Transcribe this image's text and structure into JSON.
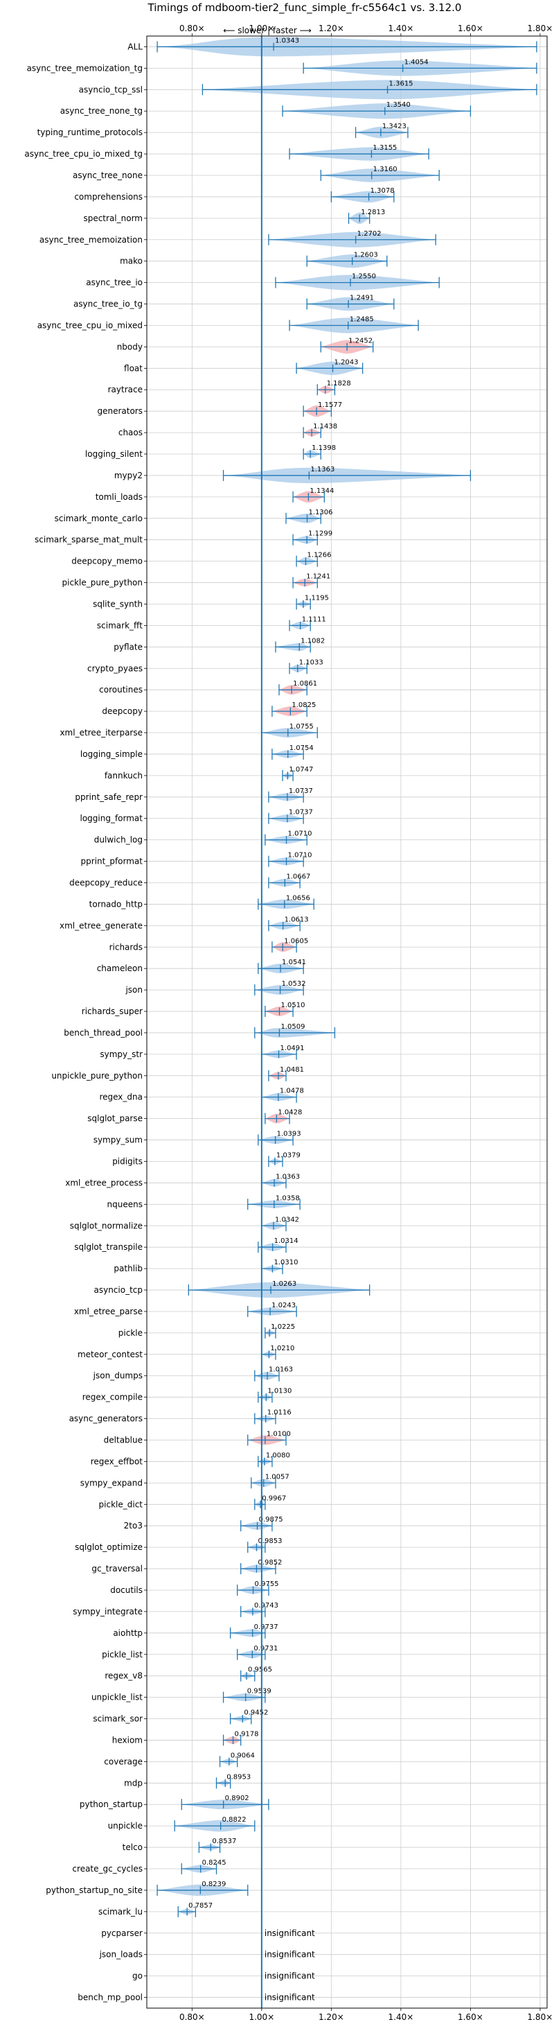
{
  "chart_data": {
    "type": "violin",
    "title": "Timings of mdboom-tier2_func_simple_fr-c5564c1 vs. 3.12.0",
    "annotation": "⟵ slower | faster ⟶",
    "xlim": [
      0.67,
      1.82
    ],
    "xticks": [
      0.8,
      1.0,
      1.2,
      1.4,
      1.6,
      1.8
    ],
    "xtick_labels": [
      "0.80×",
      "1.00×",
      "1.20×",
      "1.40×",
      "1.60×",
      "1.80×"
    ],
    "reference_line": 1.0,
    "grid": true,
    "insignificant_label": "insignificant",
    "colors": {
      "violin": "#a6c8e8",
      "highlight": "#f4a9ad",
      "line": "#1f77b4"
    },
    "benchmarks": [
      {
        "name": "ALL",
        "value": "1.0343",
        "mean": 1.0343,
        "min": 0.7,
        "max": 1.79,
        "width": 1.0,
        "hl": false
      },
      {
        "name": "async_tree_memoization_tg",
        "value": "1.4054",
        "mean": 1.4054,
        "min": 1.12,
        "max": 1.79,
        "width": 0.8,
        "hl": false
      },
      {
        "name": "asyncio_tcp_ssl",
        "value": "1.3615",
        "mean": 1.3615,
        "min": 0.83,
        "max": 1.79,
        "width": 1.0,
        "hl": false
      },
      {
        "name": "async_tree_none_tg",
        "value": "1.3540",
        "mean": 1.354,
        "min": 1.06,
        "max": 1.6,
        "width": 0.8,
        "hl": false
      },
      {
        "name": "typing_runtime_protocols",
        "value": "1.3423",
        "mean": 1.3423,
        "min": 1.27,
        "max": 1.42,
        "width": 0.6,
        "hl": false
      },
      {
        "name": "async_tree_cpu_io_mixed_tg",
        "value": "1.3155",
        "mean": 1.3155,
        "min": 1.08,
        "max": 1.48,
        "width": 0.7,
        "hl": false
      },
      {
        "name": "async_tree_none",
        "value": "1.3160",
        "mean": 1.316,
        "min": 1.17,
        "max": 1.51,
        "width": 0.7,
        "hl": false
      },
      {
        "name": "comprehensions",
        "value": "1.3078",
        "mean": 1.3078,
        "min": 1.2,
        "max": 1.38,
        "width": 0.6,
        "hl": false
      },
      {
        "name": "spectral_norm",
        "value": "1.2813",
        "mean": 1.2813,
        "min": 1.25,
        "max": 1.31,
        "width": 0.6,
        "hl": false
      },
      {
        "name": "async_tree_memoization",
        "value": "1.2702",
        "mean": 1.2702,
        "min": 1.02,
        "max": 1.5,
        "width": 0.8,
        "hl": false
      },
      {
        "name": "mako",
        "value": "1.2603",
        "mean": 1.2603,
        "min": 1.13,
        "max": 1.36,
        "width": 0.7,
        "hl": false
      },
      {
        "name": "async_tree_io",
        "value": "1.2550",
        "mean": 1.255,
        "min": 1.04,
        "max": 1.51,
        "width": 0.8,
        "hl": false
      },
      {
        "name": "async_tree_io_tg",
        "value": "1.2491",
        "mean": 1.2491,
        "min": 1.13,
        "max": 1.38,
        "width": 0.7,
        "hl": false
      },
      {
        "name": "async_tree_cpu_io_mixed",
        "value": "1.2485",
        "mean": 1.2485,
        "min": 1.08,
        "max": 1.45,
        "width": 0.8,
        "hl": false
      },
      {
        "name": "nbody",
        "value": "1.2452",
        "mean": 1.2452,
        "min": 1.17,
        "max": 1.32,
        "width": 0.7,
        "hl": true
      },
      {
        "name": "float",
        "value": "1.2043",
        "mean": 1.2043,
        "min": 1.1,
        "max": 1.29,
        "width": 0.7,
        "hl": false
      },
      {
        "name": "raytrace",
        "value": "1.1828",
        "mean": 1.1828,
        "min": 1.16,
        "max": 1.21,
        "width": 0.4,
        "hl": true
      },
      {
        "name": "generators",
        "value": "1.1577",
        "mean": 1.1577,
        "min": 1.12,
        "max": 1.2,
        "width": 0.6,
        "hl": true
      },
      {
        "name": "chaos",
        "value": "1.1438",
        "mean": 1.1438,
        "min": 1.12,
        "max": 1.17,
        "width": 0.4,
        "hl": true
      },
      {
        "name": "logging_silent",
        "value": "1.1398",
        "mean": 1.1398,
        "min": 1.12,
        "max": 1.17,
        "width": 0.4,
        "hl": false
      },
      {
        "name": "mypy2",
        "value": "1.1363",
        "mean": 1.1363,
        "min": 0.89,
        "max": 1.6,
        "width": 0.8,
        "hl": false
      },
      {
        "name": "tomli_loads",
        "value": "1.1344",
        "mean": 1.1344,
        "min": 1.09,
        "max": 1.18,
        "width": 0.6,
        "hl": true
      },
      {
        "name": "scimark_monte_carlo",
        "value": "1.1306",
        "mean": 1.1306,
        "min": 1.07,
        "max": 1.17,
        "width": 0.5,
        "hl": false
      },
      {
        "name": "scimark_sparse_mat_mult",
        "value": "1.1299",
        "mean": 1.1299,
        "min": 1.09,
        "max": 1.16,
        "width": 0.4,
        "hl": false
      },
      {
        "name": "deepcopy_memo",
        "value": "1.1266",
        "mean": 1.1266,
        "min": 1.1,
        "max": 1.16,
        "width": 0.4,
        "hl": false
      },
      {
        "name": "pickle_pure_python",
        "value": "1.1241",
        "mean": 1.1241,
        "min": 1.09,
        "max": 1.16,
        "width": 0.4,
        "hl": true
      },
      {
        "name": "sqlite_synth",
        "value": "1.1195",
        "mean": 1.1195,
        "min": 1.1,
        "max": 1.14,
        "width": 0.3,
        "hl": false
      },
      {
        "name": "scimark_fft",
        "value": "1.1111",
        "mean": 1.1111,
        "min": 1.08,
        "max": 1.14,
        "width": 0.4,
        "hl": false
      },
      {
        "name": "pyflate",
        "value": "1.1082",
        "mean": 1.1082,
        "min": 1.04,
        "max": 1.14,
        "width": 0.4,
        "hl": false
      },
      {
        "name": "crypto_pyaes",
        "value": "1.1033",
        "mean": 1.1033,
        "min": 1.08,
        "max": 1.13,
        "width": 0.4,
        "hl": false
      },
      {
        "name": "coroutines",
        "value": "1.0861",
        "mean": 1.0861,
        "min": 1.05,
        "max": 1.13,
        "width": 0.5,
        "hl": true
      },
      {
        "name": "deepcopy",
        "value": "1.0825",
        "mean": 1.0825,
        "min": 1.03,
        "max": 1.13,
        "width": 0.5,
        "hl": true
      },
      {
        "name": "xml_etree_iterparse",
        "value": "1.0755",
        "mean": 1.0755,
        "min": 1.0,
        "max": 1.16,
        "width": 0.5,
        "hl": false
      },
      {
        "name": "logging_simple",
        "value": "1.0754",
        "mean": 1.0754,
        "min": 1.03,
        "max": 1.12,
        "width": 0.4,
        "hl": false
      },
      {
        "name": "fannkuch",
        "value": "1.0747",
        "mean": 1.0747,
        "min": 1.06,
        "max": 1.09,
        "width": 0.3,
        "hl": false
      },
      {
        "name": "pprint_safe_repr",
        "value": "1.0737",
        "mean": 1.0737,
        "min": 1.02,
        "max": 1.12,
        "width": 0.4,
        "hl": false
      },
      {
        "name": "logging_format",
        "value": "1.0737",
        "mean": 1.0737,
        "min": 1.02,
        "max": 1.12,
        "width": 0.4,
        "hl": false
      },
      {
        "name": "dulwich_log",
        "value": "1.0710",
        "mean": 1.071,
        "min": 1.01,
        "max": 1.13,
        "width": 0.4,
        "hl": false
      },
      {
        "name": "pprint_pformat",
        "value": "1.0710",
        "mean": 1.071,
        "min": 1.02,
        "max": 1.12,
        "width": 0.4,
        "hl": false
      },
      {
        "name": "deepcopy_reduce",
        "value": "1.0667",
        "mean": 1.0667,
        "min": 1.02,
        "max": 1.11,
        "width": 0.4,
        "hl": false
      },
      {
        "name": "tornado_http",
        "value": "1.0656",
        "mean": 1.0656,
        "min": 0.99,
        "max": 1.15,
        "width": 0.5,
        "hl": false
      },
      {
        "name": "xml_etree_generate",
        "value": "1.0613",
        "mean": 1.0613,
        "min": 1.02,
        "max": 1.11,
        "width": 0.4,
        "hl": false
      },
      {
        "name": "richards",
        "value": "1.0605",
        "mean": 1.0605,
        "min": 1.03,
        "max": 1.1,
        "width": 0.5,
        "hl": true
      },
      {
        "name": "chameleon",
        "value": "1.0541",
        "mean": 1.0541,
        "min": 0.99,
        "max": 1.12,
        "width": 0.5,
        "hl": false
      },
      {
        "name": "json",
        "value": "1.0532",
        "mean": 1.0532,
        "min": 0.98,
        "max": 1.12,
        "width": 0.5,
        "hl": false
      },
      {
        "name": "richards_super",
        "value": "1.0510",
        "mean": 1.051,
        "min": 1.01,
        "max": 1.09,
        "width": 0.5,
        "hl": true
      },
      {
        "name": "bench_thread_pool",
        "value": "1.0509",
        "mean": 1.0509,
        "min": 0.98,
        "max": 1.21,
        "width": 0.5,
        "hl": false
      },
      {
        "name": "sympy_str",
        "value": "1.0491",
        "mean": 1.0491,
        "min": 1.0,
        "max": 1.1,
        "width": 0.4,
        "hl": false
      },
      {
        "name": "unpickle_pure_python",
        "value": "1.0481",
        "mean": 1.0481,
        "min": 1.02,
        "max": 1.07,
        "width": 0.4,
        "hl": true
      },
      {
        "name": "regex_dna",
        "value": "1.0478",
        "mean": 1.0478,
        "min": 1.0,
        "max": 1.1,
        "width": 0.4,
        "hl": false
      },
      {
        "name": "sqlglot_parse",
        "value": "1.0428",
        "mean": 1.0428,
        "min": 1.01,
        "max": 1.08,
        "width": 0.5,
        "hl": true
      },
      {
        "name": "sympy_sum",
        "value": "1.0393",
        "mean": 1.0393,
        "min": 0.99,
        "max": 1.09,
        "width": 0.4,
        "hl": false
      },
      {
        "name": "pidigits",
        "value": "1.0379",
        "mean": 1.0379,
        "min": 1.02,
        "max": 1.06,
        "width": 0.3,
        "hl": false
      },
      {
        "name": "xml_etree_process",
        "value": "1.0363",
        "mean": 1.0363,
        "min": 1.0,
        "max": 1.07,
        "width": 0.4,
        "hl": false
      },
      {
        "name": "nqueens",
        "value": "1.0358",
        "mean": 1.0358,
        "min": 0.96,
        "max": 1.11,
        "width": 0.4,
        "hl": false
      },
      {
        "name": "sqlglot_normalize",
        "value": "1.0342",
        "mean": 1.0342,
        "min": 1.0,
        "max": 1.07,
        "width": 0.4,
        "hl": false
      },
      {
        "name": "sqlglot_transpile",
        "value": "1.0314",
        "mean": 1.0314,
        "min": 0.99,
        "max": 1.07,
        "width": 0.4,
        "hl": false
      },
      {
        "name": "pathlib",
        "value": "1.0310",
        "mean": 1.031,
        "min": 1.0,
        "max": 1.06,
        "width": 0.3,
        "hl": false
      },
      {
        "name": "asyncio_tcp",
        "value": "1.0263",
        "mean": 1.0263,
        "min": 0.79,
        "max": 1.31,
        "width": 0.8,
        "hl": false
      },
      {
        "name": "xml_etree_parse",
        "value": "1.0243",
        "mean": 1.0243,
        "min": 0.96,
        "max": 1.1,
        "width": 0.4,
        "hl": false
      },
      {
        "name": "pickle",
        "value": "1.0225",
        "mean": 1.0225,
        "min": 1.01,
        "max": 1.04,
        "width": 0.3,
        "hl": false
      },
      {
        "name": "meteor_contest",
        "value": "1.0210",
        "mean": 1.021,
        "min": 1.0,
        "max": 1.04,
        "width": 0.3,
        "hl": false
      },
      {
        "name": "json_dumps",
        "value": "1.0163",
        "mean": 1.0163,
        "min": 0.98,
        "max": 1.05,
        "width": 0.4,
        "hl": false
      },
      {
        "name": "regex_compile",
        "value": "1.0130",
        "mean": 1.013,
        "min": 0.99,
        "max": 1.03,
        "width": 0.3,
        "hl": false
      },
      {
        "name": "async_generators",
        "value": "1.0116",
        "mean": 1.0116,
        "min": 0.98,
        "max": 1.04,
        "width": 0.3,
        "hl": false
      },
      {
        "name": "deltablue",
        "value": "1.0100",
        "mean": 1.01,
        "min": 0.96,
        "max": 1.07,
        "width": 0.5,
        "hl": true
      },
      {
        "name": "regex_effbot",
        "value": "1.0080",
        "mean": 1.008,
        "min": 0.99,
        "max": 1.03,
        "width": 0.3,
        "hl": false
      },
      {
        "name": "sympy_expand",
        "value": "1.0057",
        "mean": 1.0057,
        "min": 0.97,
        "max": 1.04,
        "width": 0.4,
        "hl": false
      },
      {
        "name": "pickle_dict",
        "value": "0.9967",
        "mean": 0.9967,
        "min": 0.98,
        "max": 1.01,
        "width": 0.3,
        "hl": false
      },
      {
        "name": "2to3",
        "value": "0.9875",
        "mean": 0.9875,
        "min": 0.94,
        "max": 1.03,
        "width": 0.4,
        "hl": false
      },
      {
        "name": "sqlglot_optimize",
        "value": "0.9853",
        "mean": 0.9853,
        "min": 0.96,
        "max": 1.01,
        "width": 0.3,
        "hl": false
      },
      {
        "name": "gc_traversal",
        "value": "0.9852",
        "mean": 0.9852,
        "min": 0.94,
        "max": 1.04,
        "width": 0.4,
        "hl": false
      },
      {
        "name": "docutils",
        "value": "0.9755",
        "mean": 0.9755,
        "min": 0.93,
        "max": 1.02,
        "width": 0.4,
        "hl": false
      },
      {
        "name": "sympy_integrate",
        "value": "0.9743",
        "mean": 0.9743,
        "min": 0.94,
        "max": 1.01,
        "width": 0.3,
        "hl": false
      },
      {
        "name": "aiohttp",
        "value": "0.9737",
        "mean": 0.9737,
        "min": 0.91,
        "max": 1.01,
        "width": 0.4,
        "hl": false
      },
      {
        "name": "pickle_list",
        "value": "0.9731",
        "mean": 0.9731,
        "min": 0.93,
        "max": 1.01,
        "width": 0.4,
        "hl": false
      },
      {
        "name": "regex_v8",
        "value": "0.9565",
        "mean": 0.9565,
        "min": 0.94,
        "max": 0.98,
        "width": 0.3,
        "hl": false
      },
      {
        "name": "unpickle_list",
        "value": "0.9539",
        "mean": 0.9539,
        "min": 0.89,
        "max": 1.01,
        "width": 0.4,
        "hl": false
      },
      {
        "name": "scimark_sor",
        "value": "0.9452",
        "mean": 0.9452,
        "min": 0.91,
        "max": 0.97,
        "width": 0.3,
        "hl": false
      },
      {
        "name": "hexiom",
        "value": "0.9178",
        "mean": 0.9178,
        "min": 0.89,
        "max": 0.94,
        "width": 0.4,
        "hl": true
      },
      {
        "name": "coverage",
        "value": "0.9064",
        "mean": 0.9064,
        "min": 0.88,
        "max": 0.93,
        "width": 0.3,
        "hl": false
      },
      {
        "name": "mdp",
        "value": "0.8953",
        "mean": 0.8953,
        "min": 0.87,
        "max": 0.91,
        "width": 0.3,
        "hl": false
      },
      {
        "name": "python_startup",
        "value": "0.8902",
        "mean": 0.8902,
        "min": 0.77,
        "max": 1.02,
        "width": 0.5,
        "hl": false
      },
      {
        "name": "unpickle",
        "value": "0.8822",
        "mean": 0.8822,
        "min": 0.75,
        "max": 0.98,
        "width": 0.6,
        "hl": false
      },
      {
        "name": "telco",
        "value": "0.8537",
        "mean": 0.8537,
        "min": 0.82,
        "max": 0.88,
        "width": 0.3,
        "hl": false
      },
      {
        "name": "create_gc_cycles",
        "value": "0.8245",
        "mean": 0.8245,
        "min": 0.77,
        "max": 0.87,
        "width": 0.4,
        "hl": false
      },
      {
        "name": "python_startup_no_site",
        "value": "0.8239",
        "mean": 0.8239,
        "min": 0.7,
        "max": 0.96,
        "width": 0.6,
        "hl": false
      },
      {
        "name": "scimark_lu",
        "value": "0.7857",
        "mean": 0.7857,
        "min": 0.76,
        "max": 0.81,
        "width": 0.3,
        "hl": false
      },
      {
        "name": "pycparser",
        "value": null,
        "hl": false
      },
      {
        "name": "json_loads",
        "value": null,
        "hl": false
      },
      {
        "name": "go",
        "value": null,
        "hl": false
      },
      {
        "name": "bench_mp_pool",
        "value": null,
        "hl": false
      }
    ]
  }
}
